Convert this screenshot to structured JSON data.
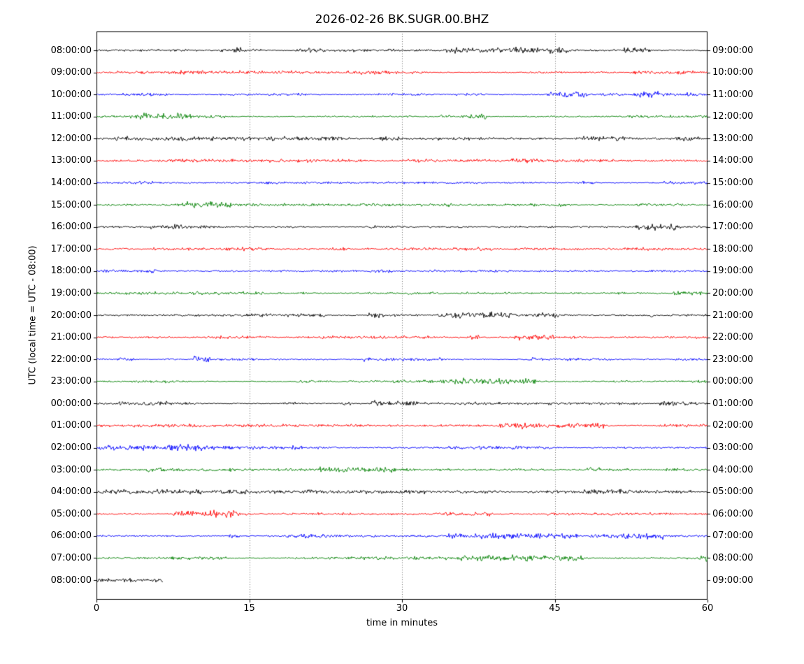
{
  "chart_data": {
    "type": "line",
    "subtype": "seismogram-dayplot",
    "title": "2026-02-26 BK.SUGR.00.BHZ",
    "xlabel": "time in minutes",
    "ylabel": "UTC (local time = UTC - 08:00)",
    "xlim": [
      0,
      60
    ],
    "xticks": [
      0,
      15,
      30,
      45,
      60
    ],
    "xtick_labels": [
      "0",
      "15",
      "30",
      "45",
      "60"
    ],
    "grid_x": [
      15,
      30,
      45
    ],
    "grid_style": "dotted",
    "frame_color": "#000000",
    "trace_colors_cycle": [
      "#000000",
      "#ff0000",
      "#0000ff",
      "#008000"
    ],
    "rows": [
      {
        "left_label": "08:00:00",
        "right_label": "09:00:00",
        "color": "#000000",
        "coverage_minutes": 60
      },
      {
        "left_label": "09:00:00",
        "right_label": "10:00:00",
        "color": "#ff0000",
        "coverage_minutes": 60
      },
      {
        "left_label": "10:00:00",
        "right_label": "11:00:00",
        "color": "#0000ff",
        "coverage_minutes": 60
      },
      {
        "left_label": "11:00:00",
        "right_label": "12:00:00",
        "color": "#008000",
        "coverage_minutes": 60
      },
      {
        "left_label": "12:00:00",
        "right_label": "13:00:00",
        "color": "#000000",
        "coverage_minutes": 60
      },
      {
        "left_label": "13:00:00",
        "right_label": "14:00:00",
        "color": "#ff0000",
        "coverage_minutes": 60
      },
      {
        "left_label": "14:00:00",
        "right_label": "15:00:00",
        "color": "#0000ff",
        "coverage_minutes": 60
      },
      {
        "left_label": "15:00:00",
        "right_label": "16:00:00",
        "color": "#008000",
        "coverage_minutes": 60
      },
      {
        "left_label": "16:00:00",
        "right_label": "17:00:00",
        "color": "#000000",
        "coverage_minutes": 60
      },
      {
        "left_label": "17:00:00",
        "right_label": "18:00:00",
        "color": "#ff0000",
        "coverage_minutes": 60
      },
      {
        "left_label": "18:00:00",
        "right_label": "19:00:00",
        "color": "#0000ff",
        "coverage_minutes": 60
      },
      {
        "left_label": "19:00:00",
        "right_label": "20:00:00",
        "color": "#008000",
        "coverage_minutes": 60
      },
      {
        "left_label": "20:00:00",
        "right_label": "21:00:00",
        "color": "#000000",
        "coverage_minutes": 60
      },
      {
        "left_label": "21:00:00",
        "right_label": "22:00:00",
        "color": "#ff0000",
        "coverage_minutes": 60
      },
      {
        "left_label": "22:00:00",
        "right_label": "23:00:00",
        "color": "#0000ff",
        "coverage_minutes": 60
      },
      {
        "left_label": "23:00:00",
        "right_label": "00:00:00",
        "color": "#008000",
        "coverage_minutes": 60
      },
      {
        "left_label": "00:00:00",
        "right_label": "01:00:00",
        "color": "#000000",
        "coverage_minutes": 60
      },
      {
        "left_label": "01:00:00",
        "right_label": "02:00:00",
        "color": "#ff0000",
        "coverage_minutes": 60
      },
      {
        "left_label": "02:00:00",
        "right_label": "03:00:00",
        "color": "#0000ff",
        "coverage_minutes": 60
      },
      {
        "left_label": "03:00:00",
        "right_label": "04:00:00",
        "color": "#008000",
        "coverage_minutes": 60
      },
      {
        "left_label": "04:00:00",
        "right_label": "05:00:00",
        "color": "#000000",
        "coverage_minutes": 60
      },
      {
        "left_label": "05:00:00",
        "right_label": "06:00:00",
        "color": "#ff0000",
        "coverage_minutes": 60
      },
      {
        "left_label": "06:00:00",
        "right_label": "07:00:00",
        "color": "#0000ff",
        "coverage_minutes": 60
      },
      {
        "left_label": "07:00:00",
        "right_label": "08:00:00",
        "color": "#008000",
        "coverage_minutes": 60
      },
      {
        "left_label": "08:00:00",
        "right_label": "09:00:00",
        "color": "#000000",
        "coverage_minutes": 6.5
      }
    ],
    "description": "Helicorder-style day plot: 25 hourly rows of flat seismic noise traces, colors cycling black/red/blue/green; last row only partially recorded."
  }
}
